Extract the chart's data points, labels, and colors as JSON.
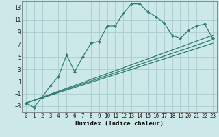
{
  "title": "",
  "xlabel": "Humidex (Indice chaleur)",
  "bg_color": "#cce8e8",
  "grid_color": "#aacccc",
  "line_color": "#2e7d6e",
  "xlim": [
    -0.5,
    23.5
  ],
  "ylim": [
    -4,
    14
  ],
  "xticks": [
    0,
    1,
    2,
    3,
    4,
    5,
    6,
    7,
    8,
    9,
    10,
    11,
    12,
    13,
    14,
    15,
    16,
    17,
    18,
    19,
    20,
    21,
    22,
    23
  ],
  "yticks": [
    -3,
    -1,
    1,
    3,
    5,
    7,
    9,
    11,
    13
  ],
  "main_x": [
    0,
    1,
    2,
    3,
    4,
    5,
    6,
    7,
    8,
    9,
    10,
    11,
    12,
    13,
    14,
    15,
    16,
    17,
    18,
    19,
    20,
    21,
    22,
    23
  ],
  "main_y": [
    -2.5,
    -3.2,
    -1.5,
    0.3,
    1.8,
    5.3,
    2.6,
    5.0,
    7.2,
    7.5,
    10.0,
    10.0,
    12.1,
    13.6,
    13.6,
    12.3,
    11.5,
    10.5,
    8.5,
    8.0,
    9.3,
    10.0,
    10.3,
    8.0
  ],
  "line1_x": [
    0,
    23
  ],
  "line1_y": [
    -2.5,
    7.8
  ],
  "line2_x": [
    0,
    23
  ],
  "line2_y": [
    -2.5,
    7.2
  ],
  "line3_x": [
    0,
    23
  ],
  "line3_y": [
    -2.5,
    8.5
  ]
}
